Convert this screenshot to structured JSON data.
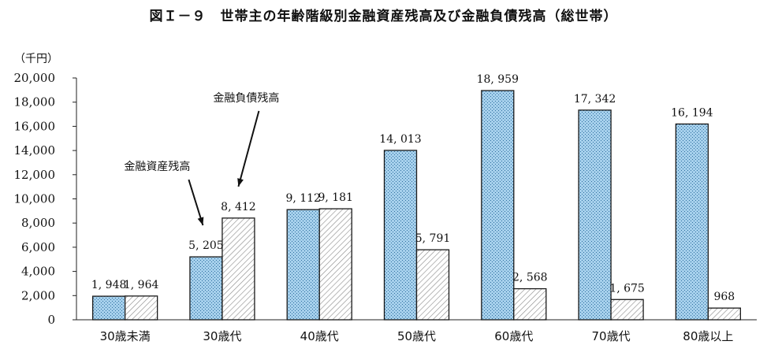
{
  "chart_data": {
    "type": "bar",
    "title": "図Ｉ－９　世帯主の年齢階級別金融資産残高及び金融負債残高（総世帯）",
    "ylabel": "（千円）",
    "xlabel": "",
    "ylim": [
      0,
      20000
    ],
    "yticks": [
      0,
      2000,
      4000,
      6000,
      8000,
      10000,
      12000,
      14000,
      16000,
      18000,
      20000
    ],
    "ytick_labels": [
      "0",
      "2,000",
      "4,000",
      "6,000",
      "8,000",
      "10,000",
      "12,000",
      "14,000",
      "16,000",
      "18,000",
      "20,000"
    ],
    "categories": [
      "30歳未満",
      "30歳代",
      "40歳代",
      "50歳代",
      "60歳代",
      "70歳代",
      "80歳以上"
    ],
    "series": [
      {
        "name": "金融資産残高",
        "values": [
          1948,
          5205,
          9112,
          14013,
          18959,
          17342,
          16194
        ],
        "value_labels": [
          "1, 948",
          "5, 205",
          "9, 112",
          "14, 013",
          "18, 959",
          "17, 342",
          "16, 194"
        ],
        "fill": "#9ecbe8",
        "edge": "#1a1a1a"
      },
      {
        "name": "金融負債残高",
        "values": [
          1964,
          8412,
          9181,
          5791,
          2568,
          1675,
          968
        ],
        "value_labels": [
          "1, 964",
          "8, 412",
          "9, 181",
          "5, 791",
          "2, 568",
          "1, 675",
          "968"
        ],
        "fill": "#ffffff",
        "edge": "#1a1a1a"
      }
    ],
    "annotations": [
      {
        "text": "金融資産残高",
        "series": 0,
        "category": "30歳代"
      },
      {
        "text": "金融負債残高",
        "series": 1,
        "category": "30歳代"
      }
    ],
    "grid": false,
    "legend": "none"
  }
}
